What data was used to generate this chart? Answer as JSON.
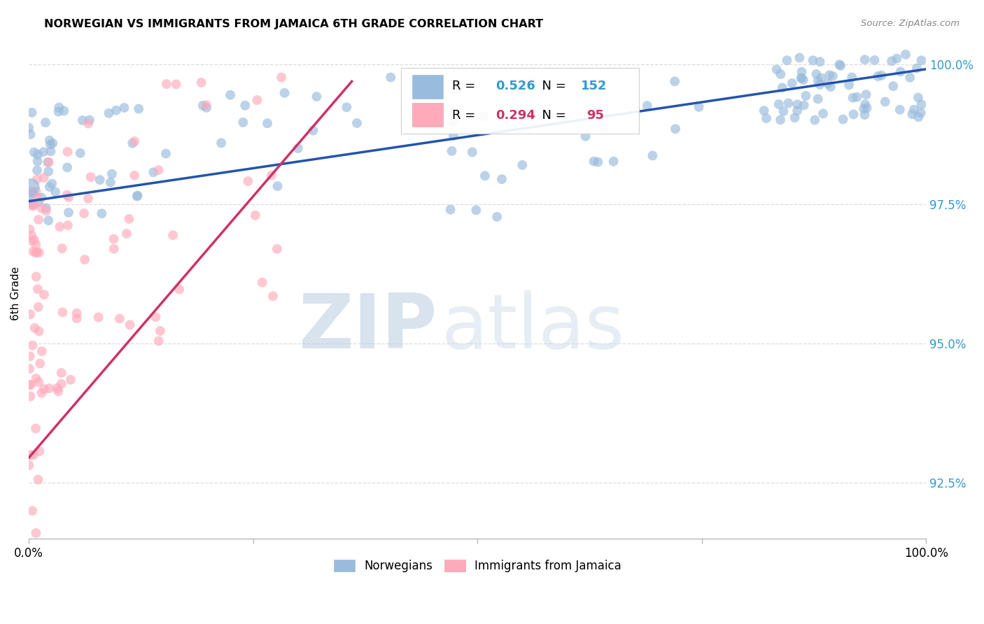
{
  "title": "NORWEGIAN VS IMMIGRANTS FROM JAMAICA 6TH GRADE CORRELATION CHART",
  "source": "Source: ZipAtlas.com",
  "ylabel": "6th Grade",
  "xmin": 0.0,
  "xmax": 1.0,
  "ymin": 0.915,
  "ymax": 1.003,
  "yticks": [
    0.925,
    0.95,
    0.975,
    1.0
  ],
  "ytick_labels": [
    "92.5%",
    "95.0%",
    "97.5%",
    "100.0%"
  ],
  "norwegian_color": "#99BBDD",
  "jamaican_color": "#FFAABB",
  "trendline_norwegian_color": "#2255AA",
  "trendline_jamaican_color": "#CC3366",
  "legend_text_norwegian": "R = 0.526   N = 152",
  "legend_text_jamaican": "R = 0.294   N =  95",
  "watermark_zip": "ZIP",
  "watermark_atlas": "atlas",
  "background_color": "#ffffff",
  "grid_color": "#dddddd",
  "nor_trend_x0": 0.0,
  "nor_trend_x1": 1.0,
  "nor_trend_y0": 0.9755,
  "nor_trend_y1": 0.9992,
  "jam_trend_x0": 0.0,
  "jam_trend_x1": 0.36,
  "jam_trend_y0": 0.9295,
  "jam_trend_y1": 0.997
}
